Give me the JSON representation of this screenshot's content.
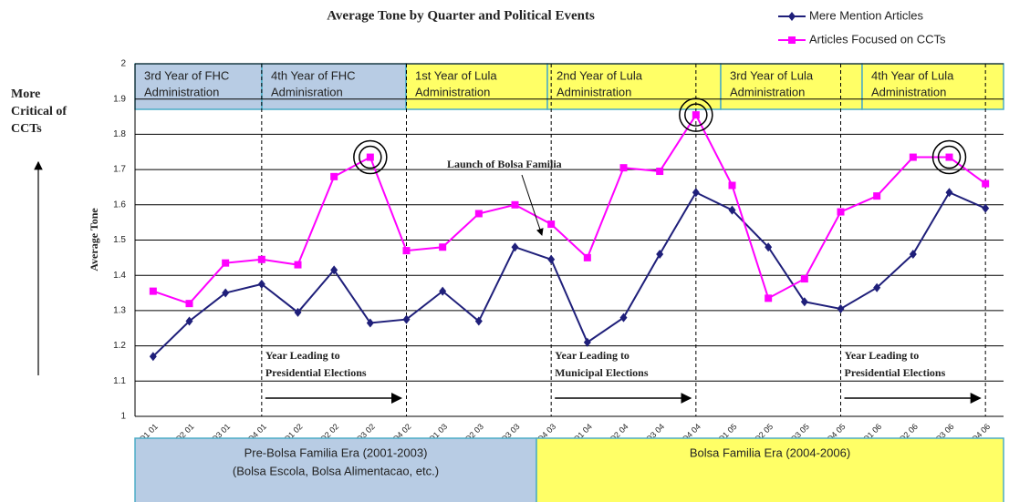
{
  "chart_data": {
    "type": "line",
    "title": "Average Tone by Quarter and Political Events",
    "y_label": "Average Tone",
    "side_note": [
      "More",
      "Critical of",
      "CCTs"
    ],
    "categories": [
      "Q1 01",
      "Q2 01",
      "Q3 01",
      "Q4 01",
      "Q1 02",
      "Q2 02",
      "Q3 02",
      "Q4 02",
      "Q1 03",
      "Q2 03",
      "Q3 03",
      "Q4 03",
      "Q1 04",
      "Q2 04",
      "Q3 04",
      "Q4 04",
      "Q1 05",
      "Q2 05",
      "Q3 05",
      "Q4 05",
      "Q1 06",
      "Q2 06",
      "Q3 06",
      "Q4 06"
    ],
    "series": [
      {
        "name": "Mere Mention Articles",
        "color": "#1f1f7a",
        "marker": "diamond",
        "values": [
          1.17,
          1.27,
          1.35,
          1.375,
          1.295,
          1.415,
          1.265,
          1.275,
          1.355,
          1.27,
          1.48,
          1.445,
          1.21,
          1.28,
          1.46,
          1.635,
          1.585,
          1.48,
          1.325,
          1.305,
          1.365,
          1.46,
          1.635,
          1.59
        ]
      },
      {
        "name": "Articles Focused on CCTs",
        "color": "#ff00ff",
        "marker": "square",
        "values": [
          1.355,
          1.32,
          1.435,
          1.445,
          1.43,
          1.68,
          1.735,
          1.47,
          1.48,
          1.575,
          1.6,
          1.545,
          1.45,
          1.705,
          1.695,
          1.855,
          1.655,
          1.335,
          1.39,
          1.58,
          1.625,
          1.735,
          1.735,
          1.66
        ]
      }
    ],
    "ylim": [
      1,
      2
    ],
    "yticks": [
      1,
      1.1,
      1.2,
      1.3,
      1.4,
      1.5,
      1.6,
      1.7,
      1.8,
      1.9,
      2
    ],
    "grid": true,
    "year_labels": [
      [
        "3rd Year of FHC",
        "Administration"
      ],
      [
        "4th Year of FHC",
        "Adminisration"
      ],
      [
        "1st Year of Lula",
        "Administration"
      ],
      [
        "2nd Year of Lula",
        "Administration"
      ],
      [
        "3rd Year of Lula",
        "Administration"
      ],
      [
        "4th Year of Lula",
        "Administration"
      ]
    ],
    "launch_note": "Launch of Bolsa Familia",
    "election_notes": [
      [
        "Year Leading to",
        "Presidential Elections"
      ],
      [
        "Year Leading to",
        "Municipal Elections"
      ],
      [
        "Year Leading to",
        "Presidential Elections"
      ]
    ],
    "eras": [
      [
        "Pre-Bolsa Familia Era (2001-2003)",
        "(Bolsa Escola, Bolsa Alimentacao, etc.)"
      ],
      [
        "Bolsa Familia Era (2004-2006)"
      ]
    ]
  }
}
